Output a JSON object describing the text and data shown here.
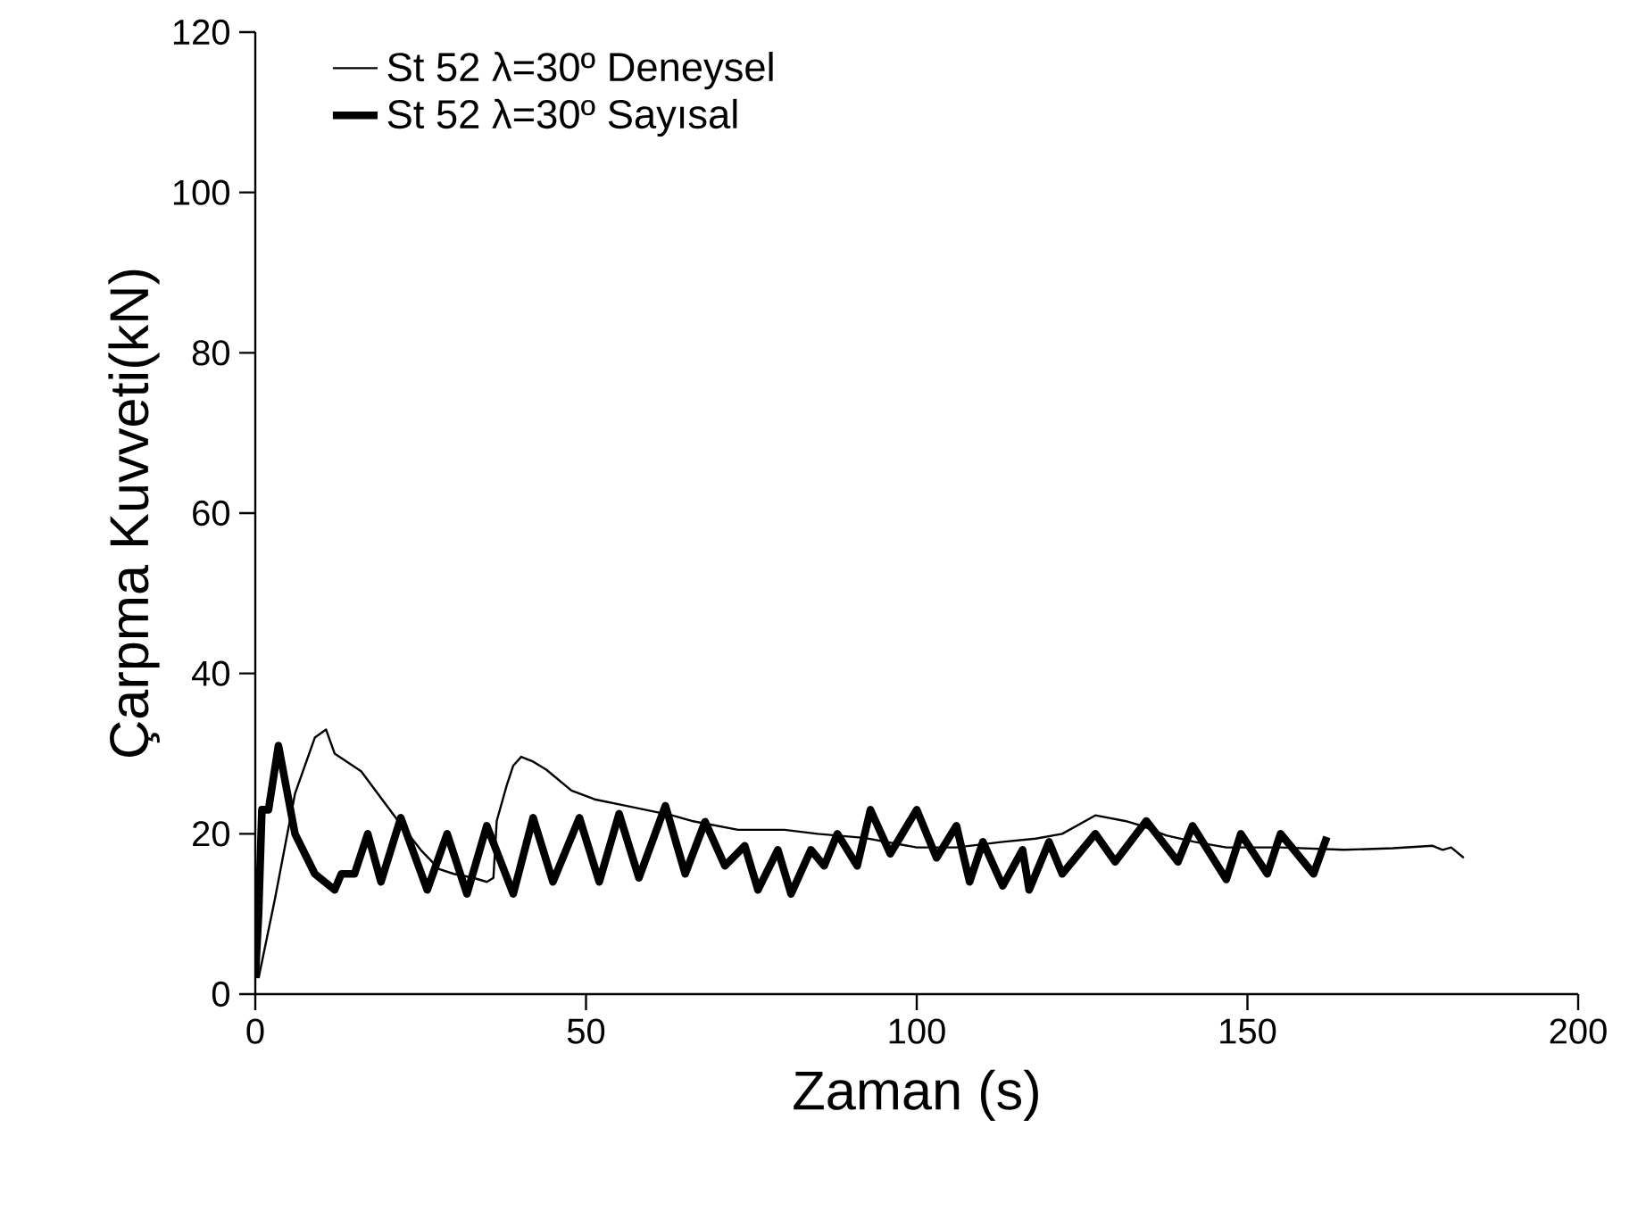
{
  "chart_data": {
    "type": "line",
    "xlabel": "Zaman (s)",
    "ylabel": "Çarpma Kuvveti(kN)",
    "xlim": [
      0,
      200
    ],
    "ylim": [
      0,
      120
    ],
    "xticks": [
      0,
      50,
      100,
      150,
      200
    ],
    "yticks": [
      0,
      20,
      40,
      60,
      80,
      100,
      120
    ],
    "legend": "top left",
    "grid": false,
    "marker": "none",
    "line_style": "solid",
    "series": [
      {
        "name": "St 52  λ=30º Deneysel",
        "color": "#000000",
        "x": [
          0.5,
          3,
          6,
          9,
          10.7,
          12,
          16,
          21.6,
          25,
          27.8,
          30,
          33,
          35,
          36,
          36.5,
          38,
          39,
          40.2,
          42,
          44,
          47.8,
          51.3,
          56,
          63,
          66,
          73,
          80,
          85,
          92,
          100,
          106,
          113,
          118,
          122,
          127,
          131.5,
          134,
          137.7,
          142,
          146.8,
          155,
          164.6,
          172,
          178,
          179.5,
          180.8,
          182.7
        ],
        "values": [
          2,
          12,
          25,
          32,
          33,
          30,
          27.8,
          21.6,
          18,
          15.6,
          15,
          14.5,
          14,
          14.5,
          21.6,
          26,
          28.5,
          29.6,
          29,
          28,
          25.4,
          24.3,
          23.5,
          22.3,
          21.6,
          20.5,
          20.5,
          20,
          19.5,
          18.3,
          18.3,
          19,
          19.4,
          20,
          22.3,
          21.6,
          21,
          19.8,
          19,
          18.3,
          18.3,
          18,
          18.2,
          18.5,
          18,
          18.3,
          17
        ]
      },
      {
        "name": "St 52  λ=30º Sayısal",
        "color": "#000000",
        "x": [
          0,
          0.5,
          1,
          2,
          3.5,
          6,
          9,
          12,
          13,
          15,
          17,
          19,
          22,
          26,
          29,
          32,
          35,
          39,
          42,
          45,
          49,
          52,
          55,
          58,
          62,
          65,
          68,
          71,
          74,
          76,
          79,
          81,
          84,
          86,
          88,
          91,
          93,
          96,
          100,
          103,
          106,
          108,
          110,
          113,
          116,
          117,
          120,
          122,
          127,
          130,
          134.7,
          139.5,
          141.7,
          146.8,
          149,
          153,
          155,
          160,
          162
        ],
        "values": [
          2,
          10,
          23,
          23,
          31,
          20,
          15,
          13,
          15,
          15,
          20,
          14,
          22,
          13,
          20,
          12.5,
          21,
          12.5,
          22,
          14,
          22,
          14,
          22.5,
          14.5,
          23.5,
          15,
          21.5,
          16,
          18.5,
          13,
          18,
          12.5,
          18,
          16,
          20,
          16,
          23,
          17.5,
          23,
          17,
          21,
          14,
          19,
          13.5,
          18,
          13,
          19,
          15,
          20,
          16.5,
          21.6,
          16.5,
          21,
          14.3,
          20,
          15,
          20,
          15,
          19.6
        ]
      }
    ]
  }
}
